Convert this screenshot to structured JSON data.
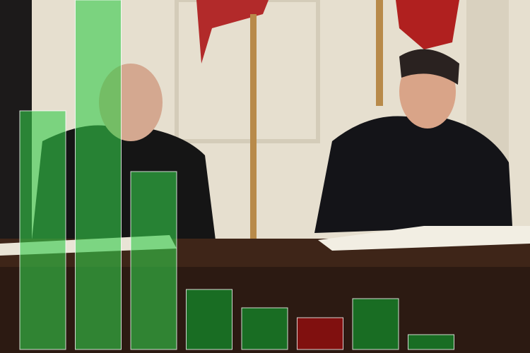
{
  "chart_data": {
    "type": "bar",
    "values": [
      338,
      495,
      252,
      85,
      59,
      45,
      72,
      21
    ],
    "colors": [
      "#33cc4a99",
      "#33cc4a99",
      "#33cc4a99",
      "#167a26dd",
      "#167a26dd",
      "#8a0f0fe6",
      "#167a26dd",
      "#167a26dd"
    ],
    "ylim": [
      0,
      495
    ]
  }
}
